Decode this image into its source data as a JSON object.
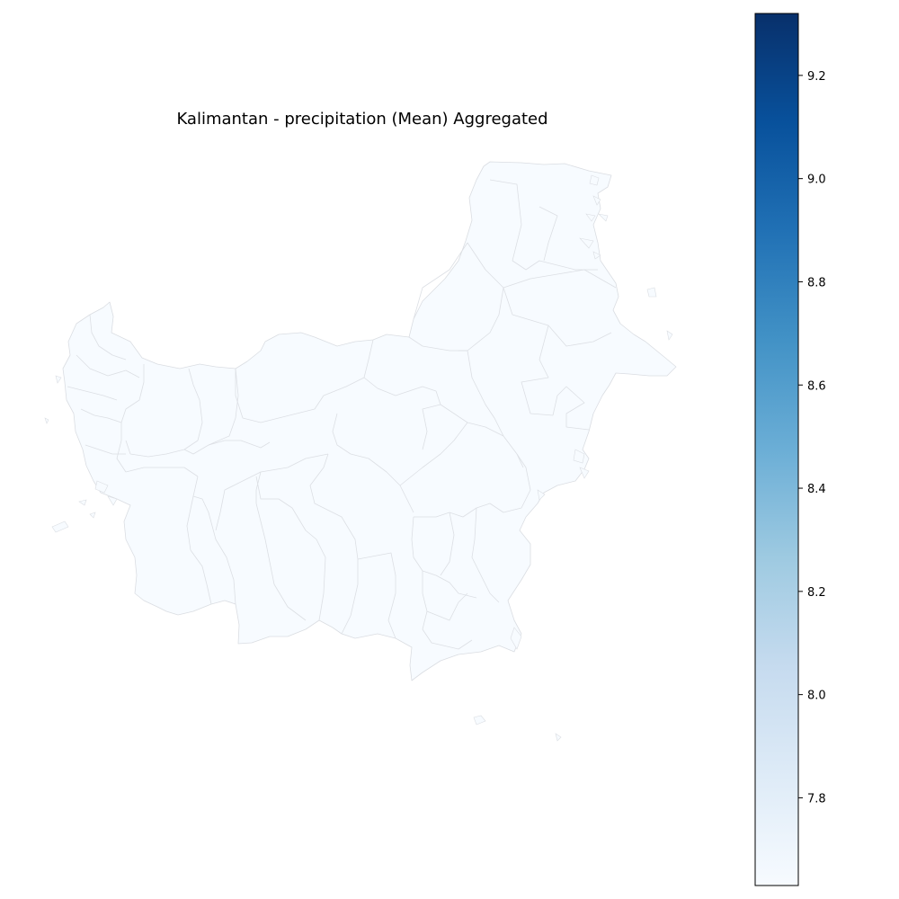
{
  "chart_data": {
    "type": "choropleth",
    "title": "Kalimantan - precipitation (Mean) Aggregated",
    "colormap": "Blues",
    "colorbar": {
      "min": 7.63,
      "max": 9.32,
      "ticks": [
        7.8,
        8.0,
        8.2,
        8.4,
        8.6,
        8.8,
        9.0,
        9.2
      ],
      "tick_labels": [
        "7.8",
        "8.0",
        "8.2",
        "8.4",
        "8.6",
        "8.8",
        "9.0",
        "9.2"
      ],
      "position": "right"
    },
    "region_fill_color": "#f7fbff",
    "region_edge_color": "#dadde2"
  }
}
